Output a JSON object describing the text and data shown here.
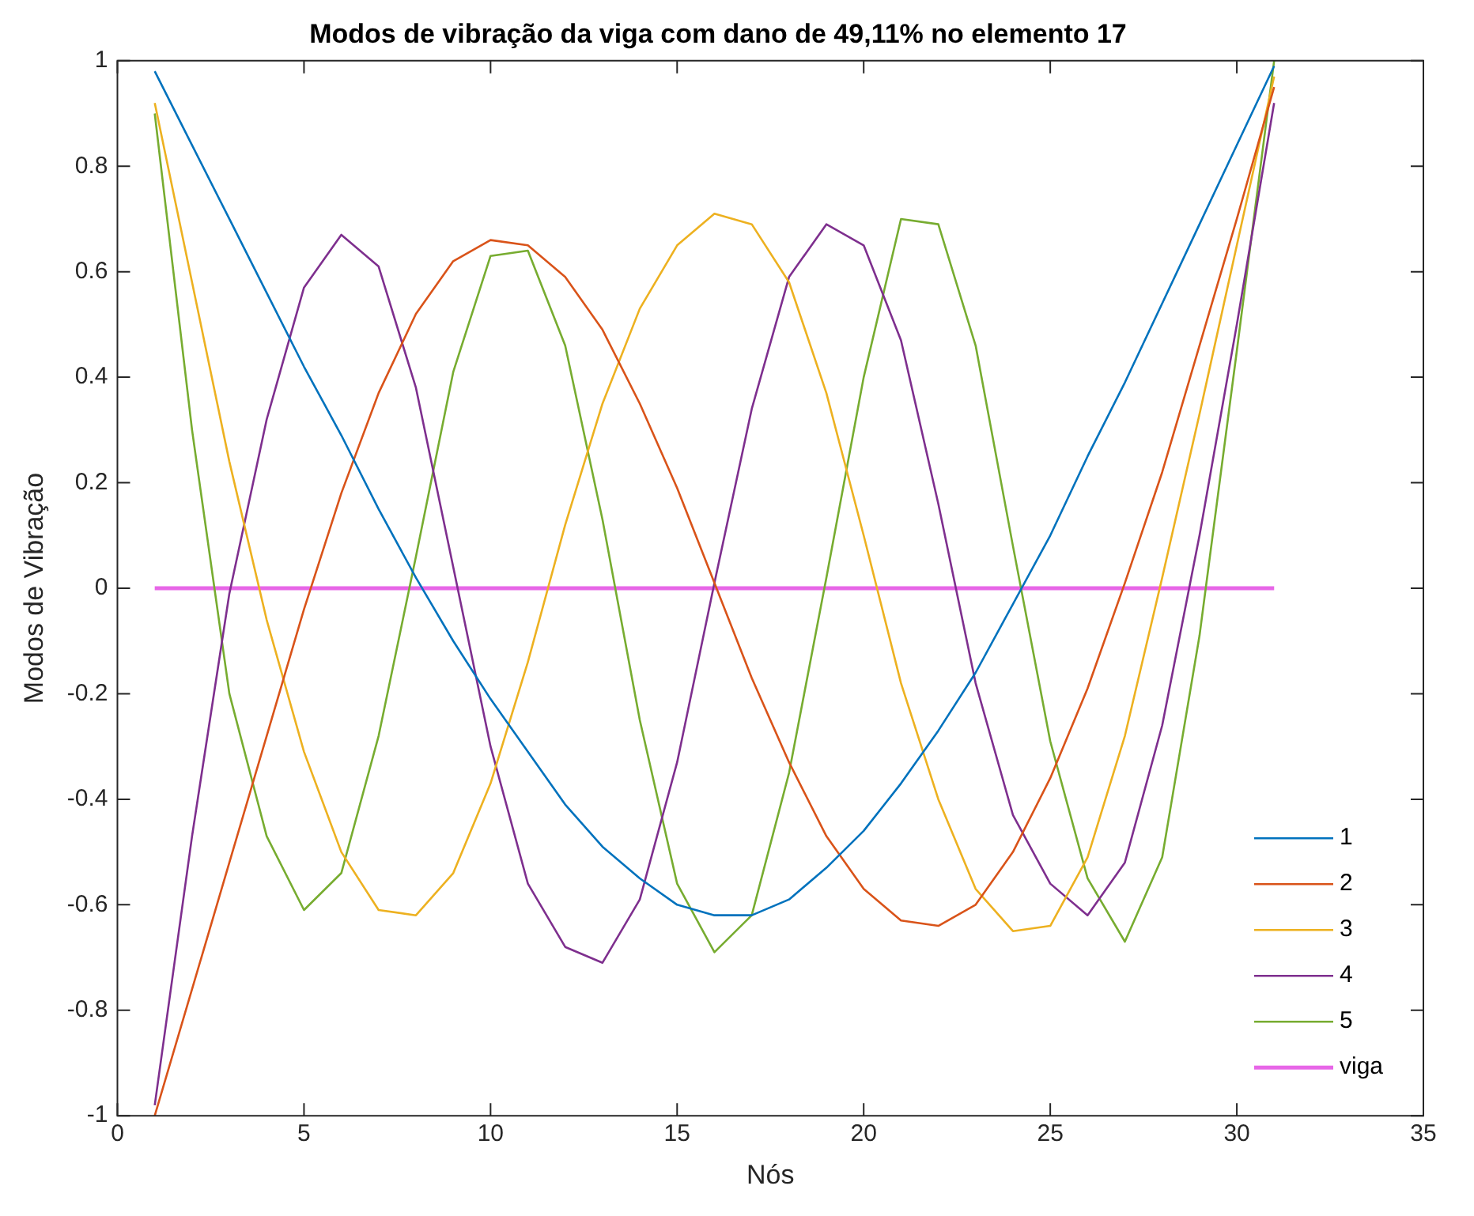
{
  "chart_data": {
    "type": "line",
    "title": "Modos de vibração da viga com dano de 49,11% no elemento 17",
    "xlabel": "Nós",
    "ylabel": "Modos de Vibração",
    "x": [
      1,
      2,
      3,
      4,
      5,
      6,
      7,
      8,
      9,
      10,
      11,
      12,
      13,
      14,
      15,
      16,
      17,
      18,
      19,
      20,
      21,
      22,
      23,
      24,
      25,
      26,
      27,
      28,
      29,
      30,
      31
    ],
    "series": [
      {
        "name": "1",
        "color": "#0072bd",
        "values": [
          0.98,
          0.84,
          0.7,
          0.56,
          0.42,
          0.29,
          0.15,
          0.02,
          -0.1,
          -0.21,
          -0.31,
          -0.41,
          -0.49,
          -0.55,
          -0.6,
          -0.62,
          -0.62,
          -0.59,
          -0.53,
          -0.46,
          -0.37,
          -0.27,
          -0.16,
          -0.03,
          0.1,
          0.25,
          0.39,
          0.54,
          0.69,
          0.84,
          0.99
        ]
      },
      {
        "name": "2",
        "color": "#d95319",
        "values": [
          -1.0,
          -0.76,
          -0.52,
          -0.28,
          -0.04,
          0.18,
          0.37,
          0.52,
          0.62,
          0.66,
          0.65,
          0.59,
          0.49,
          0.35,
          0.19,
          0.01,
          -0.17,
          -0.33,
          -0.47,
          -0.57,
          -0.63,
          -0.64,
          -0.6,
          -0.5,
          -0.36,
          -0.19,
          0.01,
          0.22,
          0.46,
          0.7,
          0.95
        ]
      },
      {
        "name": "3",
        "color": "#edb120",
        "values": [
          0.92,
          0.58,
          0.24,
          -0.06,
          -0.31,
          -0.5,
          -0.61,
          -0.62,
          -0.54,
          -0.37,
          -0.14,
          0.12,
          0.35,
          0.53,
          0.65,
          0.71,
          0.69,
          0.58,
          0.37,
          0.1,
          -0.18,
          -0.4,
          -0.57,
          -0.65,
          -0.64,
          -0.51,
          -0.28,
          0.02,
          0.33,
          0.65,
          0.97
        ]
      },
      {
        "name": "4",
        "color": "#7e2f8e",
        "values": [
          -0.98,
          -0.47,
          -0.01,
          0.32,
          0.57,
          0.67,
          0.61,
          0.38,
          0.04,
          -0.3,
          -0.56,
          -0.68,
          -0.71,
          -0.59,
          -0.33,
          0.01,
          0.34,
          0.59,
          0.69,
          0.65,
          0.47,
          0.16,
          -0.18,
          -0.43,
          -0.56,
          -0.62,
          -0.52,
          -0.26,
          0.1,
          0.5,
          0.92
        ]
      },
      {
        "name": "5",
        "color": "#77ac30",
        "values": [
          0.9,
          0.3,
          -0.2,
          -0.47,
          -0.61,
          -0.54,
          -0.28,
          0.06,
          0.41,
          0.63,
          0.64,
          0.46,
          0.13,
          -0.25,
          -0.56,
          -0.69,
          -0.62,
          -0.35,
          0.02,
          0.4,
          0.7,
          0.69,
          0.46,
          0.08,
          -0.29,
          -0.55,
          -0.67,
          -0.51,
          -0.09,
          0.45,
          1.0
        ]
      },
      {
        "name": "viga",
        "color": "#e766e7",
        "x": [
          1,
          31
        ],
        "values": [
          0,
          0
        ]
      }
    ],
    "xlim": [
      0,
      35
    ],
    "xticks": [
      0,
      5,
      10,
      15,
      20,
      25,
      30,
      35
    ],
    "ylim": [
      -1,
      1
    ],
    "yticks": [
      -1,
      -0.8,
      -0.6,
      -0.4,
      -0.2,
      0,
      0.2,
      0.4,
      0.6,
      0.8,
      1
    ],
    "grid": false,
    "legend": "bottom right",
    "marker": "none",
    "line_style": "solid"
  }
}
